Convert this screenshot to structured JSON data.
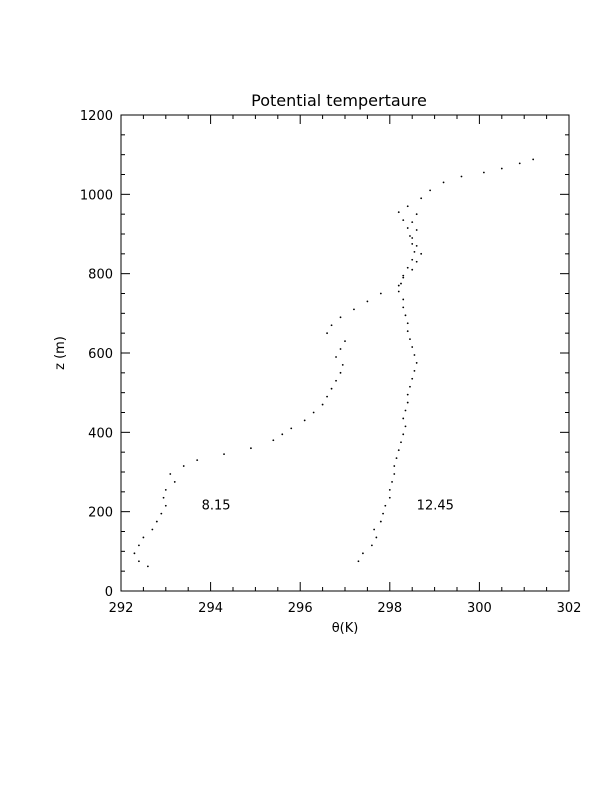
{
  "chart_data": {
    "type": "scatter",
    "title": "Potential tempertaure",
    "xlabel": "θ(K)",
    "ylabel": "z (m)",
    "xlim": [
      292,
      302
    ],
    "ylim": [
      0,
      1200
    ],
    "xticks": [
      292,
      294,
      296,
      298,
      300,
      302
    ],
    "yticks": [
      0,
      200,
      400,
      600,
      800,
      1000,
      1200
    ],
    "x_minor_step": 0.5,
    "y_minor_step": 50,
    "grid": false,
    "annotations": [
      {
        "text": "8.15",
        "x": 293.8,
        "y": 205
      },
      {
        "text": "12.45",
        "x": 298.6,
        "y": 205
      }
    ],
    "series": [
      {
        "points": [
          [
            292.6,
            62
          ],
          [
            292.4,
            75
          ],
          [
            292.3,
            95
          ],
          [
            292.4,
            115
          ],
          [
            292.5,
            135
          ],
          [
            292.7,
            155
          ],
          [
            292.8,
            175
          ],
          [
            292.9,
            195
          ],
          [
            293.0,
            215
          ],
          [
            292.95,
            235
          ],
          [
            293.0,
            255
          ],
          [
            293.2,
            275
          ],
          [
            293.1,
            295
          ],
          [
            293.4,
            315
          ],
          [
            293.7,
            330
          ],
          [
            294.3,
            345
          ],
          [
            294.9,
            360
          ],
          [
            295.4,
            380
          ],
          [
            295.6,
            395
          ],
          [
            295.8,
            410
          ],
          [
            296.1,
            430
          ],
          [
            296.3,
            450
          ],
          [
            296.5,
            470
          ],
          [
            296.6,
            490
          ],
          [
            296.7,
            510
          ],
          [
            296.8,
            530
          ],
          [
            296.9,
            550
          ],
          [
            296.95,
            570
          ],
          [
            296.8,
            590
          ],
          [
            296.9,
            610
          ],
          [
            297.0,
            630
          ],
          [
            296.6,
            650
          ],
          [
            296.7,
            670
          ],
          [
            296.9,
            690
          ],
          [
            297.2,
            710
          ],
          [
            297.5,
            730
          ],
          [
            297.8,
            750
          ],
          [
            298.2,
            770
          ],
          [
            298.3,
            790
          ],
          [
            298.5,
            810
          ],
          [
            298.6,
            830
          ],
          [
            298.7,
            850
          ],
          [
            298.6,
            870
          ],
          [
            298.5,
            890
          ],
          [
            298.6,
            910
          ],
          [
            298.5,
            930
          ],
          [
            298.6,
            950
          ],
          [
            298.4,
            970
          ],
          [
            298.7,
            990
          ],
          [
            298.9,
            1010
          ],
          [
            299.2,
            1030
          ],
          [
            299.6,
            1045
          ],
          [
            300.1,
            1055
          ],
          [
            300.5,
            1065
          ],
          [
            300.9,
            1078
          ],
          [
            301.2,
            1088
          ]
        ]
      },
      {
        "points": [
          [
            297.3,
            75
          ],
          [
            297.4,
            95
          ],
          [
            297.6,
            115
          ],
          [
            297.7,
            135
          ],
          [
            297.65,
            155
          ],
          [
            297.8,
            175
          ],
          [
            297.85,
            195
          ],
          [
            297.9,
            215
          ],
          [
            298.0,
            235
          ],
          [
            298.0,
            255
          ],
          [
            298.05,
            275
          ],
          [
            298.1,
            295
          ],
          [
            298.1,
            315
          ],
          [
            298.15,
            335
          ],
          [
            298.2,
            355
          ],
          [
            298.25,
            375
          ],
          [
            298.3,
            395
          ],
          [
            298.35,
            415
          ],
          [
            298.3,
            435
          ],
          [
            298.35,
            455
          ],
          [
            298.4,
            475
          ],
          [
            298.4,
            495
          ],
          [
            298.45,
            515
          ],
          [
            298.5,
            535
          ],
          [
            298.55,
            555
          ],
          [
            298.6,
            575
          ],
          [
            298.55,
            595
          ],
          [
            298.5,
            615
          ],
          [
            298.45,
            635
          ],
          [
            298.4,
            655
          ],
          [
            298.4,
            675
          ],
          [
            298.35,
            695
          ],
          [
            298.3,
            715
          ],
          [
            298.3,
            735
          ],
          [
            298.2,
            755
          ],
          [
            298.25,
            775
          ],
          [
            298.3,
            795
          ],
          [
            298.4,
            815
          ],
          [
            298.5,
            835
          ],
          [
            298.55,
            855
          ],
          [
            298.5,
            875
          ],
          [
            298.45,
            895
          ],
          [
            298.4,
            915
          ],
          [
            298.3,
            935
          ],
          [
            298.2,
            955
          ]
        ]
      }
    ]
  }
}
